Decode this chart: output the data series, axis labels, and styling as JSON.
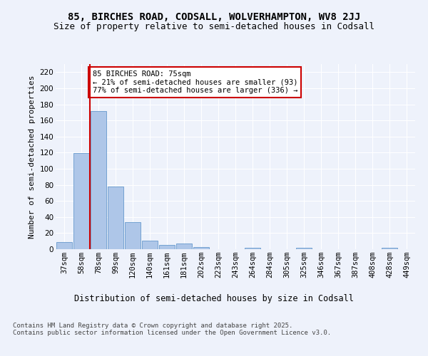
{
  "title1": "85, BIRCHES ROAD, CODSALL, WOLVERHAMPTON, WV8 2JJ",
  "title2": "Size of property relative to semi-detached houses in Codsall",
  "xlabel": "Distribution of semi-detached houses by size in Codsall",
  "ylabel": "Number of semi-detached properties",
  "categories": [
    "37sqm",
    "58sqm",
    "78sqm",
    "99sqm",
    "120sqm",
    "140sqm",
    "161sqm",
    "181sqm",
    "202sqm",
    "223sqm",
    "243sqm",
    "264sqm",
    "284sqm",
    "305sqm",
    "325sqm",
    "346sqm",
    "367sqm",
    "387sqm",
    "408sqm",
    "428sqm",
    "449sqm"
  ],
  "values": [
    9,
    119,
    172,
    78,
    34,
    11,
    5,
    7,
    3,
    0,
    0,
    2,
    0,
    0,
    2,
    0,
    0,
    0,
    0,
    2,
    0
  ],
  "bar_color": "#aec6e8",
  "bar_edge_color": "#6699cc",
  "vline_color": "#cc0000",
  "vline_x": 1.5,
  "annotation_text": "85 BIRCHES ROAD: 75sqm\n← 21% of semi-detached houses are smaller (93)\n77% of semi-detached houses are larger (336) →",
  "annotation_box_facecolor": "#ffffff",
  "annotation_box_edgecolor": "#cc0000",
  "ylim": [
    0,
    230
  ],
  "yticks": [
    0,
    20,
    40,
    60,
    80,
    100,
    120,
    140,
    160,
    180,
    200,
    220
  ],
  "footer": "Contains HM Land Registry data © Crown copyright and database right 2025.\nContains public sector information licensed under the Open Government Licence v3.0.",
  "bg_color": "#eef2fb",
  "grid_color": "#ffffff",
  "title1_fontsize": 10,
  "title2_fontsize": 9,
  "xlabel_fontsize": 8.5,
  "ylabel_fontsize": 8,
  "tick_fontsize": 7.5,
  "annotation_fontsize": 7.5,
  "footer_fontsize": 6.5
}
